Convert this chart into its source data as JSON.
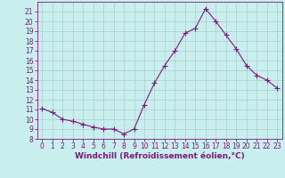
{
  "x": [
    0,
    1,
    2,
    3,
    4,
    5,
    6,
    7,
    8,
    9,
    10,
    11,
    12,
    13,
    14,
    15,
    16,
    17,
    18,
    19,
    20,
    21,
    22,
    23
  ],
  "y": [
    11.1,
    10.7,
    10.0,
    9.8,
    9.5,
    9.2,
    9.0,
    9.0,
    8.5,
    9.0,
    11.5,
    13.7,
    15.5,
    17.0,
    18.8,
    19.3,
    21.3,
    20.0,
    18.6,
    17.2,
    15.5,
    14.5,
    14.0,
    13.2
  ],
  "line_color": "#7b1b7b",
  "marker": "+",
  "marker_size": 4,
  "background_color": "#c8eeed",
  "grid_color": "#aacccc",
  "xlabel": "Windchill (Refroidissement éolien,°C)",
  "xlim": [
    -0.5,
    23.5
  ],
  "ylim": [
    8,
    22
  ],
  "yticks": [
    8,
    9,
    10,
    11,
    12,
    13,
    14,
    15,
    16,
    17,
    18,
    19,
    20,
    21
  ],
  "xticks": [
    0,
    1,
    2,
    3,
    4,
    5,
    6,
    7,
    8,
    9,
    10,
    11,
    12,
    13,
    14,
    15,
    16,
    17,
    18,
    19,
    20,
    21,
    22,
    23
  ],
  "tick_fontsize": 5.5,
  "xlabel_fontsize": 6.5,
  "line_width": 0.8,
  "marker_edge_width": 0.8
}
